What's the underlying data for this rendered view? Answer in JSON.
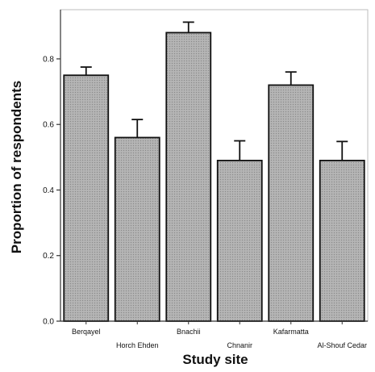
{
  "chart_data": {
    "type": "bar",
    "title": "",
    "xlabel": "Study site",
    "ylabel": "Proportion of respondents",
    "categories": [
      "Berqayel",
      "Horch Ehden",
      "Bnachii",
      "Chnanir",
      "Kafarmatta",
      "Al-Shouf Cedar"
    ],
    "values": [
      0.75,
      0.56,
      0.88,
      0.49,
      0.72,
      0.49
    ],
    "error_upper": [
      0.775,
      0.615,
      0.912,
      0.55,
      0.76,
      0.548
    ],
    "ylim": [
      0,
      0.95
    ],
    "yticks": [
      0.0,
      0.2,
      0.4,
      0.6,
      0.8
    ],
    "ytick_labels": [
      "0.0",
      "0.2",
      "0.4",
      "0.6",
      "0.8"
    ],
    "grid": false,
    "legend": "none",
    "colors": {
      "bar_fill": "#a9a9a9",
      "bar_stroke": "#111111",
      "axis": "#333333",
      "frame": "#bdbdbd"
    }
  }
}
